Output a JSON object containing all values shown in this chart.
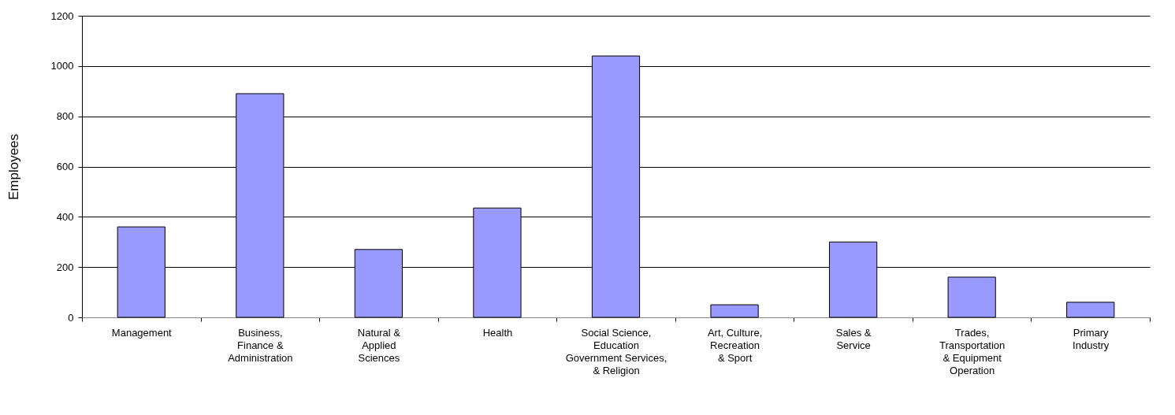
{
  "chart_data": {
    "type": "bar",
    "categories": [
      "Management",
      "Business,\nFinance &\nAdministration",
      "Natural &\nApplied\nSciences",
      "Health",
      "Social Science,\nEducation\nGovernment Services,\n& Religion",
      "Art, Culture,\nRecreation\n& Sport",
      "Sales &\nService",
      "Trades,\nTransportation\n& Equipment\nOperation",
      "Primary\nIndustry"
    ],
    "values": [
      360,
      890,
      270,
      435,
      1040,
      50,
      300,
      160,
      60
    ],
    "color": "#9999ff",
    "ylabel": "Employees",
    "ylim": [
      0,
      1200
    ],
    "yticks": [
      0,
      200,
      400,
      600,
      800,
      1000,
      1200
    ],
    "grid": "y"
  }
}
